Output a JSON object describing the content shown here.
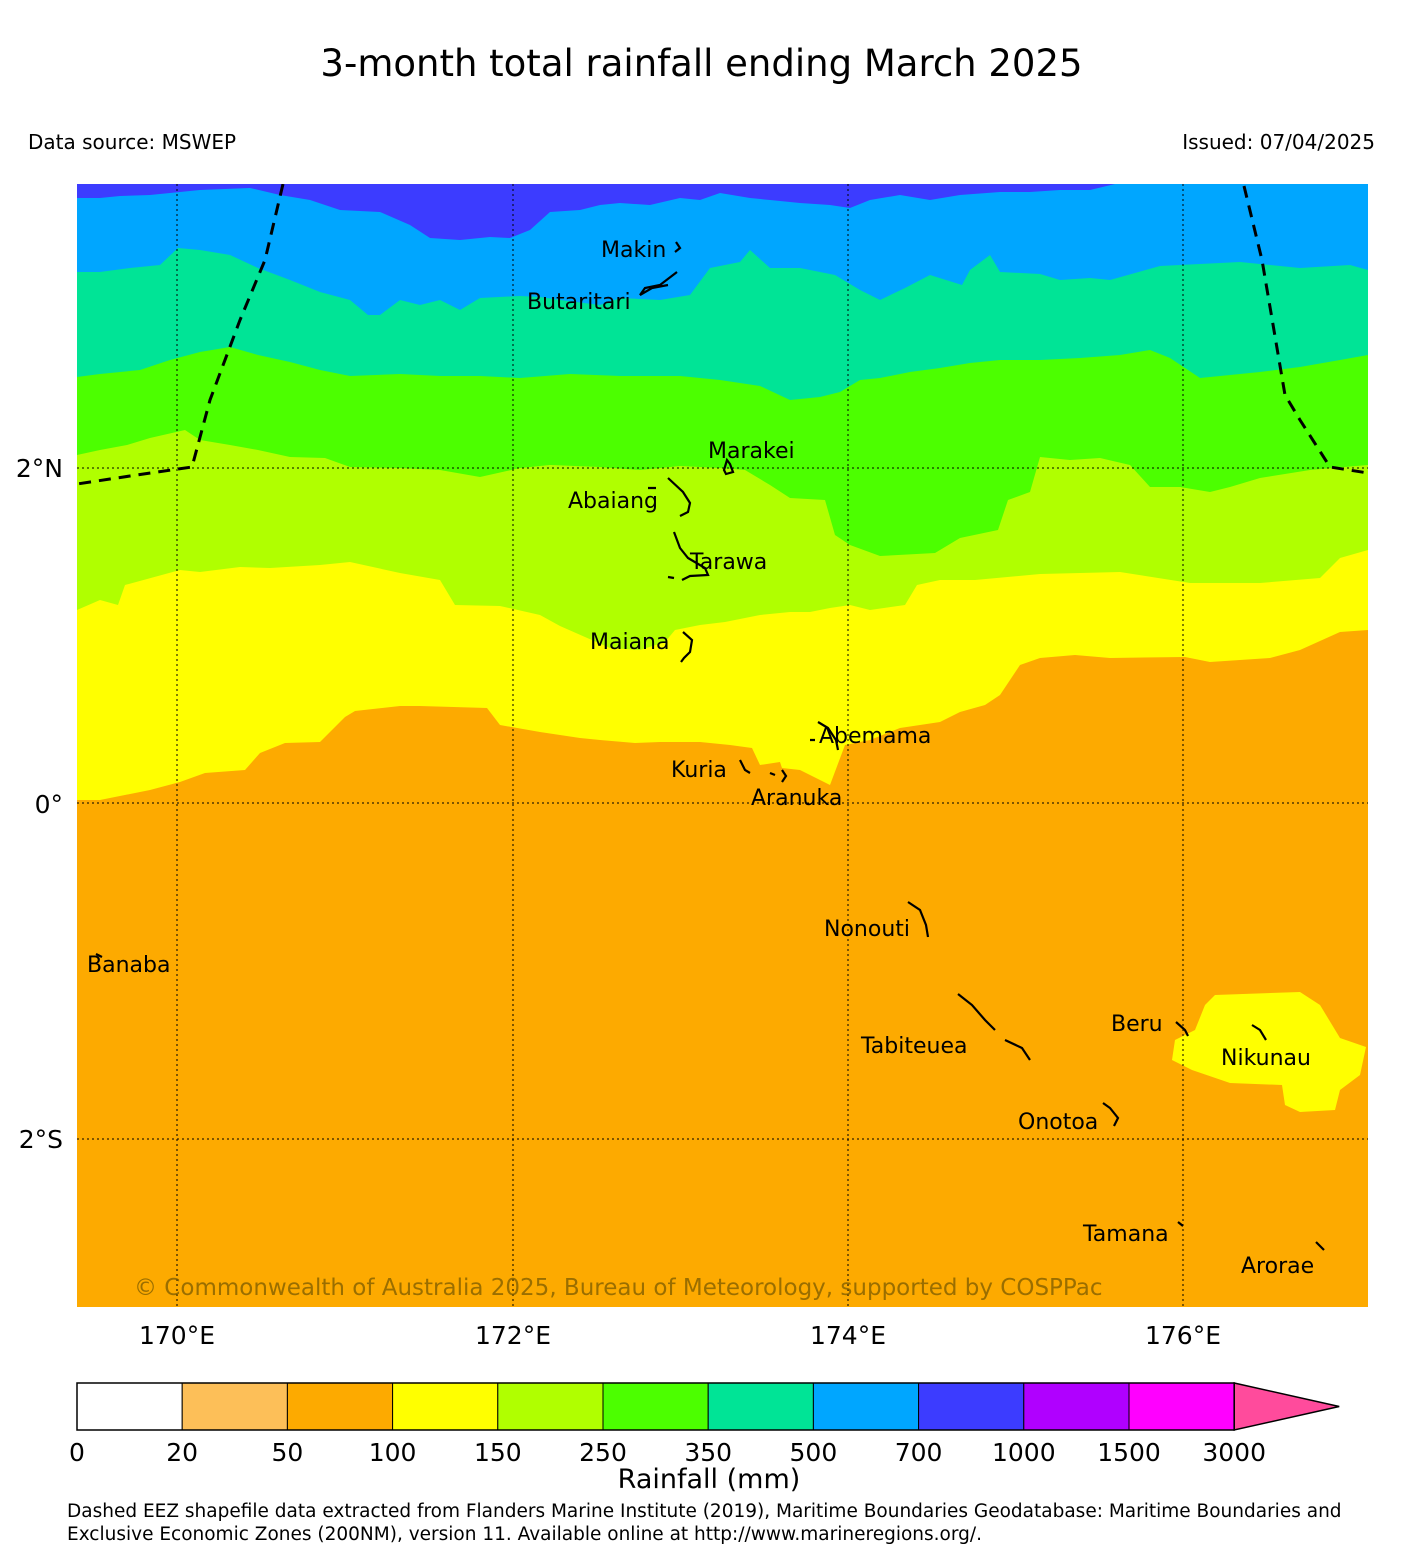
{
  "title": "3-month total rainfall ending March 2025",
  "data_source": "Data source: MSWEP",
  "issued": "Issued: 07/04/2025",
  "copyright": "© Commonwealth of Australia 2025, Bureau of Meteorology, supported by COSPPac",
  "map": {
    "lat_labels": [
      "2°N",
      "0°",
      "2°S"
    ],
    "lon_labels": [
      "170°E",
      "172°E",
      "174°E",
      "176°E"
    ],
    "islands": [
      "Makin",
      "Butaritari",
      "Marakei",
      "Abaiang",
      "Tarawa",
      "Maiana",
      "Abemama",
      "Kuria",
      "Aranuka",
      "Nonouti",
      "Banaba",
      "Beru",
      "Tabiteuea",
      "Nikunau",
      "Onotoa",
      "Tamana",
      "Arorae"
    ],
    "colors": {
      "r20_50": "#fdbf58",
      "r50_100": "#fdaa00",
      "r100_150": "#ffff00",
      "r150_250": "#b0ff00",
      "r250_350": "#4cff00",
      "r350_500": "#00e496",
      "r500_700": "#00a6ff",
      "r700_1000": "#3c3cff",
      "r1000_1500": "#b000ff",
      "r1500_3000": "#ff00ff",
      "r3000_plus": "#ff4b9c",
      "eez_line": "#000000"
    }
  },
  "colorbar": {
    "title": "Rainfall (mm)",
    "ticks": [
      "0",
      "20",
      "50",
      "100",
      "150",
      "250",
      "350",
      "500",
      "700",
      "1000",
      "1500",
      "3000"
    ],
    "colors": [
      "#ffffff",
      "#fdbf58",
      "#fdaa00",
      "#ffff00",
      "#b0ff00",
      "#4cff00",
      "#00e496",
      "#00a6ff",
      "#3c3cff",
      "#b000ff",
      "#ff00ff"
    ],
    "extend_color": "#ff4b9c"
  },
  "footnote": "Dashed EEZ shapefile data extracted from Flanders Marine Institute (2019), Maritime Boundaries Geodatabase: Maritime Boundaries and Exclusive Economic Zones (200NM), version 11. Available online at http://www.marineregions.org/."
}
